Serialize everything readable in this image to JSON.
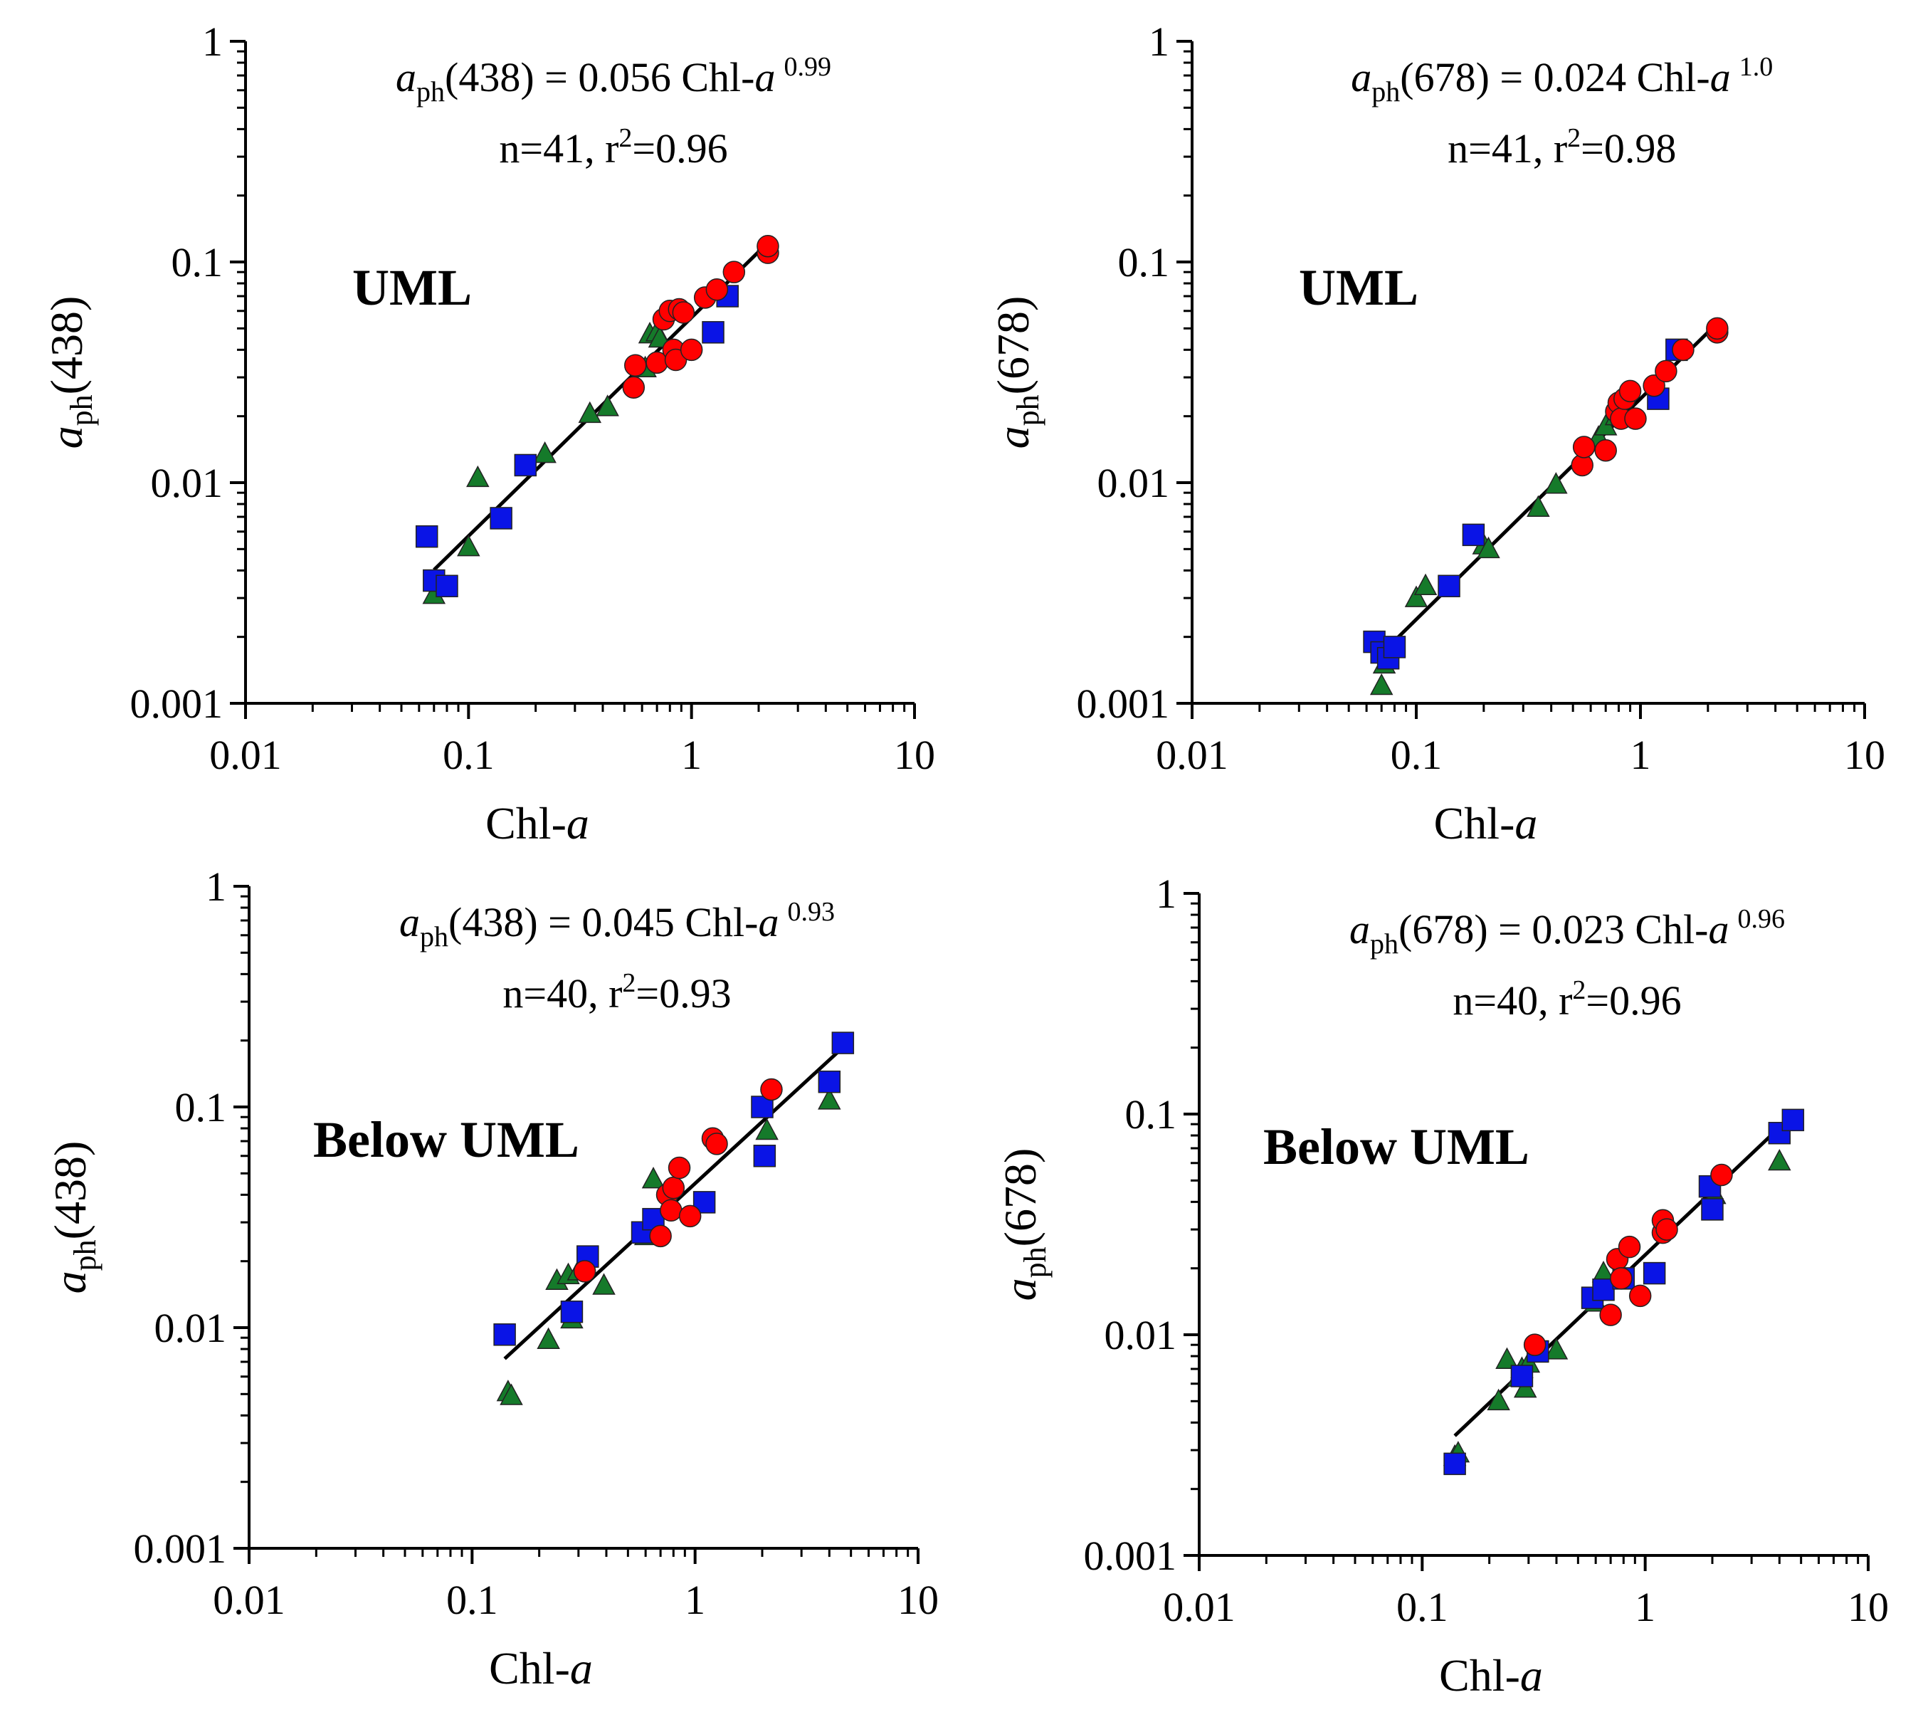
{
  "colors": {
    "axis": "#000000",
    "fit_line": "#000000",
    "square": "#0a14e6",
    "circle": "#ff0000",
    "triangle": "#157a2a",
    "marker_edge": "#222222"
  },
  "chart_data": [
    {
      "id": "uml-438",
      "type": "scatter",
      "scale": "log-log",
      "xlabel": "Chl-a",
      "ylabel": "aph(438)",
      "xlim": [
        0.01,
        10
      ],
      "ylim": [
        0.001,
        1
      ],
      "x_ticks": [
        "0.01",
        "0.1",
        "1",
        "10"
      ],
      "y_ticks": [
        "0.001",
        "0.01",
        "0.1",
        "1"
      ],
      "region_label": "UML",
      "equation": {
        "lhs_var": "a",
        "lhs_sub": "ph",
        "lhs_arg": "(438)",
        "mid": " = 0.056 Chl-",
        "var": "a",
        "exponent": "0.99",
        "stats": "n=41, r",
        "r_sup": "2",
        "r_val": "=0.96"
      },
      "fit": {
        "coef": 0.056,
        "exp": 0.99,
        "x_range": [
          0.07,
          2.2
        ]
      },
      "series": [
        {
          "name": "squares",
          "marker": "square",
          "points": [
            [
              0.065,
              0.0057
            ],
            [
              0.07,
              0.0036
            ],
            [
              0.08,
              0.0034
            ],
            [
              0.14,
              0.0069
            ],
            [
              0.18,
              0.012
            ],
            [
              1.25,
              0.048
            ],
            [
              1.45,
              0.07
            ]
          ]
        },
        {
          "name": "circles",
          "marker": "circle",
          "points": [
            [
              0.55,
              0.027
            ],
            [
              0.56,
              0.034
            ],
            [
              0.7,
              0.035
            ],
            [
              0.75,
              0.055
            ],
            [
              0.8,
              0.06
            ],
            [
              0.83,
              0.04
            ],
            [
              0.85,
              0.036
            ],
            [
              0.88,
              0.061
            ],
            [
              0.92,
              0.059
            ],
            [
              1.0,
              0.04
            ],
            [
              1.15,
              0.069
            ],
            [
              1.3,
              0.075
            ],
            [
              1.55,
              0.09
            ],
            [
              2.2,
              0.11
            ],
            [
              2.2,
              0.118
            ]
          ]
        },
        {
          "name": "triangles",
          "marker": "triangle",
          "points": [
            [
              0.07,
              0.0031
            ],
            [
              0.072,
              0.0036
            ],
            [
              0.1,
              0.0051
            ],
            [
              0.11,
              0.0105
            ],
            [
              0.22,
              0.0135
            ],
            [
              0.35,
              0.0205
            ],
            [
              0.42,
              0.022
            ],
            [
              0.62,
              0.033
            ],
            [
              0.65,
              0.047
            ],
            [
              0.7,
              0.048
            ],
            [
              0.72,
              0.045
            ]
          ]
        }
      ]
    },
    {
      "id": "uml-678",
      "type": "scatter",
      "scale": "log-log",
      "xlabel": "Chl-a",
      "ylabel": "aph(678)",
      "xlim": [
        0.01,
        10
      ],
      "ylim": [
        0.001,
        1
      ],
      "x_ticks": [
        "0.01",
        "0.1",
        "1",
        "10"
      ],
      "y_ticks": [
        "0.001",
        "0.01",
        "0.1",
        "1"
      ],
      "region_label": "UML",
      "equation": {
        "lhs_var": "a",
        "lhs_sub": "ph",
        "lhs_arg": "(678)",
        "mid": " = 0.024 Chl-",
        "var": "a",
        "exponent": "1.0",
        "stats": "n=41, r",
        "r_sup": "2",
        "r_val": "=0.98"
      },
      "fit": {
        "coef": 0.024,
        "exp": 1.0,
        "x_range": [
          0.075,
          2.2
        ]
      },
      "series": [
        {
          "name": "squares",
          "marker": "square",
          "points": [
            [
              0.065,
              0.0019
            ],
            [
              0.07,
              0.0017
            ],
            [
              0.075,
              0.0016
            ],
            [
              0.08,
              0.0018
            ],
            [
              0.14,
              0.0034
            ],
            [
              0.18,
              0.0058
            ],
            [
              1.2,
              0.024
            ],
            [
              1.45,
              0.04
            ]
          ]
        },
        {
          "name": "circles",
          "marker": "circle",
          "points": [
            [
              0.55,
              0.012
            ],
            [
              0.56,
              0.0145
            ],
            [
              0.7,
              0.014
            ],
            [
              0.78,
              0.021
            ],
            [
              0.8,
              0.023
            ],
            [
              0.82,
              0.0195
            ],
            [
              0.85,
              0.024
            ],
            [
              0.9,
              0.026
            ],
            [
              0.95,
              0.0195
            ],
            [
              1.15,
              0.0275
            ],
            [
              1.3,
              0.032
            ],
            [
              1.55,
              0.04
            ],
            [
              2.2,
              0.048
            ],
            [
              2.2,
              0.05
            ]
          ]
        },
        {
          "name": "triangles",
          "marker": "triangle",
          "points": [
            [
              0.07,
              0.0012
            ],
            [
              0.072,
              0.0015
            ],
            [
              0.1,
              0.003
            ],
            [
              0.11,
              0.0034
            ],
            [
              0.2,
              0.0052
            ],
            [
              0.21,
              0.005
            ],
            [
              0.35,
              0.0077
            ],
            [
              0.42,
              0.0098
            ],
            [
              0.65,
              0.016
            ],
            [
              0.7,
              0.018
            ],
            [
              0.78,
              0.02
            ]
          ]
        }
      ]
    },
    {
      "id": "below-438",
      "type": "scatter",
      "scale": "log-log",
      "xlabel": "Chl-a",
      "ylabel": "aph(438)",
      "xlim": [
        0.01,
        10
      ],
      "ylim": [
        0.001,
        1
      ],
      "x_ticks": [
        "0.01",
        "0.1",
        "1",
        "10"
      ],
      "y_ticks": [
        "0.001",
        "0.01",
        "0.1",
        "1"
      ],
      "region_label": "Below UML",
      "equation": {
        "lhs_var": "a",
        "lhs_sub": "ph",
        "lhs_arg": "(438)",
        "mid": " = 0.045 Chl-",
        "var": "a",
        "exponent": "0.93",
        "stats": "n=40, r",
        "r_sup": "2",
        "r_val": "=0.93"
      },
      "fit": {
        "coef": 0.045,
        "exp": 0.93,
        "x_range": [
          0.14,
          4.6
        ]
      },
      "series": [
        {
          "name": "squares",
          "marker": "square",
          "points": [
            [
              0.14,
              0.0093
            ],
            [
              0.28,
              0.0118
            ],
            [
              0.33,
              0.021
            ],
            [
              0.58,
              0.027
            ],
            [
              0.65,
              0.031
            ],
            [
              1.1,
              0.037
            ],
            [
              2.0,
              0.1
            ],
            [
              2.05,
              0.06
            ],
            [
              4.0,
              0.13
            ],
            [
              4.6,
              0.195
            ]
          ]
        },
        {
          "name": "circles",
          "marker": "circle",
          "points": [
            [
              0.32,
              0.018
            ],
            [
              0.7,
              0.026
            ],
            [
              0.75,
              0.04
            ],
            [
              0.78,
              0.034
            ],
            [
              0.8,
              0.043
            ],
            [
              0.85,
              0.053
            ],
            [
              0.95,
              0.032
            ],
            [
              1.2,
              0.072
            ],
            [
              1.25,
              0.068
            ],
            [
              2.2,
              0.12
            ]
          ]
        },
        {
          "name": "triangles",
          "marker": "triangle",
          "points": [
            [
              0.145,
              0.0051
            ],
            [
              0.15,
              0.0049
            ],
            [
              0.22,
              0.0088
            ],
            [
              0.24,
              0.0163
            ],
            [
              0.27,
              0.0173
            ],
            [
              0.28,
              0.0109
            ],
            [
              0.3,
              0.018
            ],
            [
              0.39,
              0.0155
            ],
            [
              0.6,
              0.026
            ],
            [
              0.65,
              0.047
            ],
            [
              2.1,
              0.078
            ],
            [
              4.0,
              0.107
            ]
          ]
        }
      ]
    },
    {
      "id": "below-678",
      "type": "scatter",
      "scale": "log-log",
      "xlabel": "Chl-a",
      "ylabel": "aph(678)",
      "xlim": [
        0.01,
        10
      ],
      "ylim": [
        0.001,
        1
      ],
      "x_ticks": [
        "0.01",
        "0.1",
        "1",
        "10"
      ],
      "y_ticks": [
        "0.001",
        "0.01",
        "0.1",
        "1"
      ],
      "region_label": "Below UML",
      "equation": {
        "lhs_var": "a",
        "lhs_sub": "ph",
        "lhs_arg": "(678)",
        "mid": " = 0.023 Chl-",
        "var": "a",
        "exponent": "0.96",
        "stats": "n=40, r",
        "r_sup": "2",
        "r_val": "=0.96"
      },
      "fit": {
        "coef": 0.023,
        "exp": 0.96,
        "x_range": [
          0.14,
          4.6
        ]
      },
      "series": [
        {
          "name": "squares",
          "marker": "square",
          "points": [
            [
              0.14,
              0.0026
            ],
            [
              0.28,
              0.0065
            ],
            [
              0.33,
              0.0084
            ],
            [
              0.58,
              0.0147
            ],
            [
              0.65,
              0.016
            ],
            [
              0.8,
              0.018
            ],
            [
              1.1,
              0.019
            ],
            [
              1.95,
              0.047
            ],
            [
              2.0,
              0.037
            ],
            [
              4.0,
              0.082
            ],
            [
              4.6,
              0.094
            ]
          ]
        },
        {
          "name": "circles",
          "marker": "circle",
          "points": [
            [
              0.32,
              0.009
            ],
            [
              0.7,
              0.0123
            ],
            [
              0.75,
              0.022
            ],
            [
              0.78,
              0.018
            ],
            [
              0.85,
              0.025
            ],
            [
              0.95,
              0.015
            ],
            [
              1.2,
              0.029
            ],
            [
              1.2,
              0.033
            ],
            [
              1.25,
              0.03
            ],
            [
              2.2,
              0.053
            ]
          ]
        },
        {
          "name": "triangles",
          "marker": "triangle",
          "points": [
            [
              0.14,
              0.0028
            ],
            [
              0.145,
              0.0029
            ],
            [
              0.22,
              0.005
            ],
            [
              0.24,
              0.0077
            ],
            [
              0.27,
              0.0064
            ],
            [
              0.28,
              0.007
            ],
            [
              0.29,
              0.0057
            ],
            [
              0.3,
              0.0074
            ],
            [
              0.4,
              0.0085
            ],
            [
              0.6,
              0.014
            ],
            [
              0.65,
              0.019
            ],
            [
              2.05,
              0.043
            ],
            [
              4.0,
              0.061
            ]
          ]
        }
      ]
    }
  ]
}
